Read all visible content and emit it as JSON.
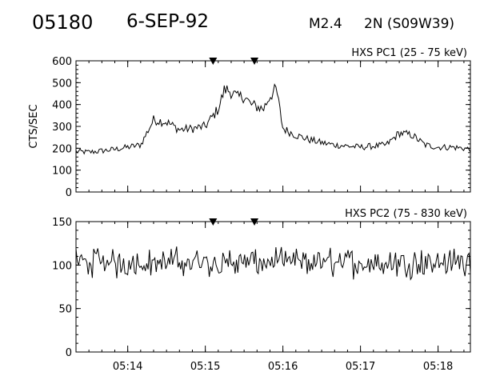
{
  "header": {
    "event_number": "05180",
    "date": "6-SEP-92",
    "flare_class": "M2.4",
    "location": "2N (S09W39)"
  },
  "chart_data": [
    {
      "type": "line",
      "title": "HXS PC1 (25 - 75 keV)",
      "ylabel": "CTS/SEC",
      "xlabel": "",
      "xlim": [
        "05:13:20",
        "05:18:25"
      ],
      "ylim": [
        0,
        600
      ],
      "yticks": [
        0,
        100,
        200,
        300,
        400,
        500,
        600
      ],
      "xticks": [
        "05:14",
        "05:15",
        "05:16",
        "05:17",
        "05:18"
      ],
      "markers": [
        "05:15:06",
        "05:15:38"
      ],
      "series": [
        {
          "values_x": [
            "05:13:20",
            "05:13:30",
            "05:13:40",
            "05:13:50",
            "05:14:00",
            "05:14:10",
            "05:14:20",
            "05:14:30",
            "05:14:40",
            "05:14:50",
            "05:15:00",
            "05:15:10",
            "05:15:15",
            "05:15:20",
            "05:15:25",
            "05:15:30",
            "05:15:35",
            "05:15:40",
            "05:15:45",
            "05:15:50",
            "05:15:55",
            "05:16:00",
            "05:16:10",
            "05:16:20",
            "05:16:30",
            "05:16:40",
            "05:16:50",
            "05:17:00",
            "05:17:10",
            "05:17:20",
            "05:17:30",
            "05:17:40",
            "05:17:50",
            "05:18:00",
            "05:18:10",
            "05:18:20",
            "05:18:25"
          ],
          "y": [
            185,
            182,
            188,
            195,
            205,
            215,
            330,
            320,
            285,
            290,
            300,
            380,
            470,
            460,
            430,
            440,
            400,
            390,
            380,
            440,
            470,
            290,
            260,
            240,
            225,
            215,
            210,
            205,
            210,
            215,
            270,
            260,
            215,
            205,
            205,
            200,
            195
          ]
        }
      ]
    },
    {
      "type": "line",
      "title": "HXS PC2 (75 - 830 keV)",
      "ylabel": "",
      "xlabel": "",
      "xlim": [
        "05:13:20",
        "05:18:25"
      ],
      "ylim": [
        0,
        150
      ],
      "yticks": [
        0,
        50,
        100,
        150
      ],
      "xticks": [
        "05:14",
        "05:15",
        "05:16",
        "05:17",
        "05:18"
      ],
      "xticklabels": [
        "05:14",
        "05:15",
        "05:16",
        "05:17",
        "05:18"
      ],
      "markers": [
        "05:15:06",
        "05:15:38"
      ],
      "series": [
        {
          "mean": 103,
          "noise": 9
        }
      ]
    }
  ]
}
